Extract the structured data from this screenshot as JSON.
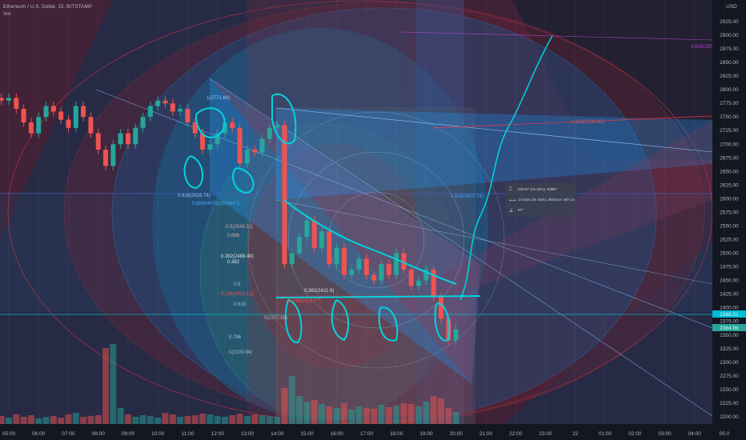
{
  "header": {
    "symbol": "Ethereum / U.S. Dollar, 15, BITSTAMP",
    "indicator": "Vol"
  },
  "price_axis": {
    "currency": "USD",
    "ticks": [
      "2925.00",
      "2900.00",
      "2875.00",
      "2850.00",
      "2825.00",
      "2800.00",
      "2775.00",
      "2750.00",
      "2725.00",
      "2700.00",
      "2675.00",
      "2650.00",
      "2625.00",
      "2600.00",
      "2575.00",
      "2550.00",
      "2525.00",
      "2500.00",
      "2475.00",
      "2450.00",
      "2425.00",
      "2400.00",
      "2375.00",
      "2350.00",
      "2325.00",
      "2300.00",
      "2275.00",
      "2250.00",
      "2225.00",
      "2200.00"
    ],
    "badges": [
      {
        "text": "2388.51",
        "color": "#00bcd4"
      },
      {
        "text": "2364.96",
        "color": "#26a69a"
      }
    ]
  },
  "time_axis": {
    "ticks": [
      "05:00",
      "06:00",
      "07:00",
      "08:00",
      "09:00",
      "10:00",
      "11:00",
      "12:00",
      "13:00",
      "14:00",
      "15:00",
      "16:00",
      "17:00",
      "18:00",
      "19:00",
      "20:00",
      "21:00",
      "22:00",
      "23:00",
      "22",
      "01:00",
      "02:00",
      "03:00",
      "04:00",
      "05:0"
    ]
  },
  "measure_tooltip": {
    "price_range": "539.57 (22.43%), 53957",
    "bars_range": "14 bars (3h 30m), distance: 867 px",
    "angle": "67°"
  },
  "fib_labels": {
    "l1": "1(2771.84)",
    "l2": "0.618(2618.74)",
    "l3": "0.88964479(2589947)",
    "l4": "0.5(2543.11)",
    "l5": "0.886",
    "l6": "0.382(2488.40)",
    "l7": "0.382",
    "l8": "0.5",
    "l9": "0.236(2432.12)",
    "l10": "0.618",
    "l11": "0(2377.59)",
    "l12": "0.786",
    "l13": "0(2109.94)",
    "l14": "0.382(2421.9)",
    "l15": "0.236(2418.77)",
    "l16": "1.618(2603.74)",
    "l17": "1.618(2738.95)",
    "l18": "3.618(2877.15)"
  },
  "colors": {
    "up": "#26a69a",
    "down": "#ef5350",
    "drawing_cyan": "#00d4e0",
    "fib_blue": "#2962ff",
    "fib_red": "#f23645"
  },
  "chart_data": {
    "type": "candlestick",
    "title": "Ethereum / U.S. Dollar, 15, BITSTAMP",
    "interval": "15m",
    "first_bar": "04:45",
    "ylim": [
      2190,
      2935
    ],
    "close": [
      2780,
      2785,
      2765,
      2740,
      2720,
      2750,
      2770,
      2760,
      2745,
      2730,
      2770,
      2750,
      2720,
      2690,
      2660,
      2700,
      2720,
      2700,
      2730,
      2750,
      2770,
      2780,
      2775,
      2760,
      2765,
      2740,
      2720,
      2690,
      2700,
      2720,
      2740,
      2730,
      2665,
      2690,
      2685,
      2710,
      2730,
      2735,
      2480,
      2500,
      2530,
      2560,
      2510,
      2540,
      2480,
      2510,
      2460,
      2470,
      2490,
      2460,
      2450,
      2480,
      2460,
      2500,
      2470,
      2440,
      2450,
      2470,
      2420,
      2380,
      2340,
      2360
    ],
    "volume": [
      10,
      8,
      12,
      9,
      11,
      7,
      9,
      10,
      8,
      12,
      14,
      9,
      10,
      11,
      95,
      100,
      20,
      12,
      9,
      11,
      10,
      8,
      14,
      12,
      9,
      10,
      11,
      13,
      12,
      10,
      9,
      11,
      13,
      10,
      12,
      11,
      10,
      9,
      45,
      60,
      35,
      28,
      30,
      25,
      22,
      20,
      26,
      18,
      22,
      20,
      19,
      24,
      21,
      23,
      26,
      25,
      22,
      28,
      35,
      32,
      20,
      15
    ]
  }
}
